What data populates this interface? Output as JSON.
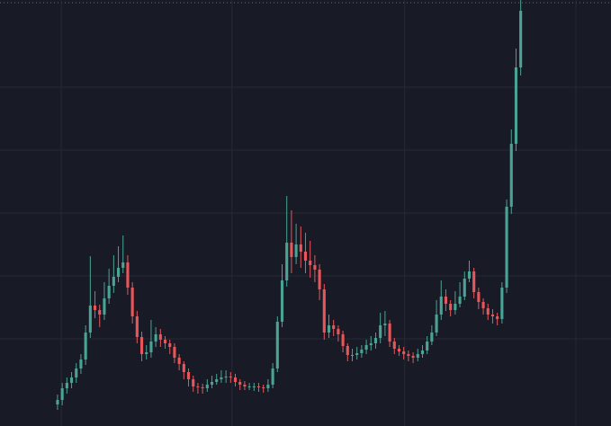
{
  "chart_data": {
    "type": "candlestick",
    "x": [
      0,
      1,
      2,
      3,
      4,
      5,
      6,
      7,
      8,
      9,
      10,
      11,
      12,
      13,
      14,
      15,
      16,
      17,
      18,
      19,
      20,
      21,
      22,
      23,
      24,
      25,
      26,
      27,
      28,
      29,
      30,
      31,
      32,
      33,
      34,
      35,
      36,
      37,
      38,
      39,
      40,
      41,
      42,
      43,
      44,
      45,
      46,
      47,
      48,
      49,
      50,
      51,
      52,
      53,
      54,
      55,
      56,
      57,
      58,
      59,
      60,
      61,
      62,
      63,
      64,
      65,
      66,
      67,
      68,
      69,
      70,
      71,
      72,
      73,
      74,
      75,
      76,
      77,
      78,
      79,
      80,
      81,
      82,
      83,
      84,
      85,
      86,
      87,
      88,
      89,
      90,
      91,
      92,
      93,
      94,
      95,
      96,
      97,
      98,
      99
    ],
    "open": [
      24,
      29,
      42,
      48,
      54,
      64,
      74,
      104,
      134,
      129,
      124,
      142,
      156,
      166,
      176,
      182,
      154,
      122,
      99,
      80,
      82,
      94,
      102,
      96,
      92,
      88,
      76,
      69,
      60,
      52,
      44,
      43,
      42,
      46,
      49,
      52,
      54,
      55,
      54,
      49,
      46,
      44,
      44,
      44,
      43,
      42,
      46,
      64,
      116,
      162,
      204,
      188,
      202,
      194,
      184,
      179,
      174,
      152,
      104,
      112,
      108,
      102,
      89,
      79,
      79,
      81,
      85,
      90,
      92,
      98,
      112,
      114,
      94,
      86,
      83,
      80,
      78,
      76,
      80,
      84,
      94,
      104,
      124,
      144,
      136,
      129,
      136,
      144,
      164,
      172,
      149,
      138,
      131,
      124,
      122,
      119,
      154,
      244,
      314,
      399
    ],
    "high": [
      35,
      48,
      54,
      60,
      70,
      80,
      112,
      189,
      150,
      135,
      160,
      175,
      190,
      200,
      212,
      190,
      160,
      128,
      105,
      90,
      118,
      110,
      108,
      100,
      96,
      92,
      80,
      72,
      64,
      56,
      48,
      47,
      52,
      56,
      58,
      62,
      62,
      60,
      58,
      52,
      50,
      48,
      48,
      48,
      46,
      52,
      70,
      122,
      180,
      256,
      240,
      225,
      222,
      215,
      206,
      190,
      180,
      158,
      124,
      118,
      112,
      106,
      92,
      86,
      88,
      90,
      96,
      100,
      104,
      126,
      128,
      118,
      98,
      90,
      88,
      84,
      82,
      86,
      90,
      100,
      112,
      140,
      162,
      152,
      140,
      150,
      160,
      172,
      184,
      176,
      154,
      142,
      136,
      130,
      126,
      160,
      252,
      330,
      420,
      474
    ],
    "low": [
      18,
      23,
      36,
      42,
      48,
      58,
      68,
      98,
      120,
      110,
      118,
      136,
      148,
      160,
      170,
      146,
      114,
      92,
      72,
      74,
      76,
      88,
      88,
      86,
      80,
      70,
      62,
      52,
      44,
      38,
      36,
      36,
      38,
      42,
      46,
      48,
      48,
      48,
      44,
      40,
      40,
      40,
      39,
      38,
      37,
      38,
      42,
      60,
      110,
      155,
      170,
      180,
      176,
      170,
      165,
      160,
      140,
      96,
      98,
      100,
      94,
      82,
      72,
      72,
      74,
      76,
      80,
      84,
      86,
      92,
      100,
      88,
      80,
      78,
      74,
      72,
      70,
      72,
      76,
      80,
      90,
      100,
      118,
      128,
      122,
      124,
      132,
      140,
      160,
      142,
      130,
      124,
      118,
      114,
      112,
      114,
      148,
      236,
      306,
      390
    ],
    "close": [
      29,
      42,
      48,
      54,
      64,
      74,
      104,
      134,
      129,
      124,
      142,
      156,
      166,
      176,
      182,
      154,
      122,
      99,
      80,
      82,
      94,
      102,
      96,
      92,
      88,
      76,
      69,
      60,
      52,
      44,
      43,
      42,
      46,
      49,
      52,
      54,
      55,
      54,
      49,
      46,
      44,
      44,
      44,
      43,
      42,
      46,
      64,
      116,
      162,
      204,
      188,
      202,
      194,
      184,
      179,
      174,
      152,
      104,
      112,
      108,
      102,
      89,
      79,
      79,
      81,
      85,
      90,
      92,
      98,
      112,
      114,
      94,
      86,
      83,
      80,
      78,
      76,
      80,
      84,
      94,
      104,
      124,
      144,
      136,
      129,
      136,
      144,
      164,
      172,
      149,
      138,
      131,
      124,
      122,
      119,
      154,
      244,
      314,
      399,
      462
    ],
    "up_color": "#4aa394",
    "down_color": "#e5575b",
    "xlim": [
      -12.3,
      118.3
    ],
    "ylim": [
      0,
      474
    ],
    "xticks": [
      0.8,
      37.3,
      74.2,
      110.8
    ],
    "yticks": [
      97,
      167,
      237,
      307,
      377
    ],
    "grid": true
  }
}
